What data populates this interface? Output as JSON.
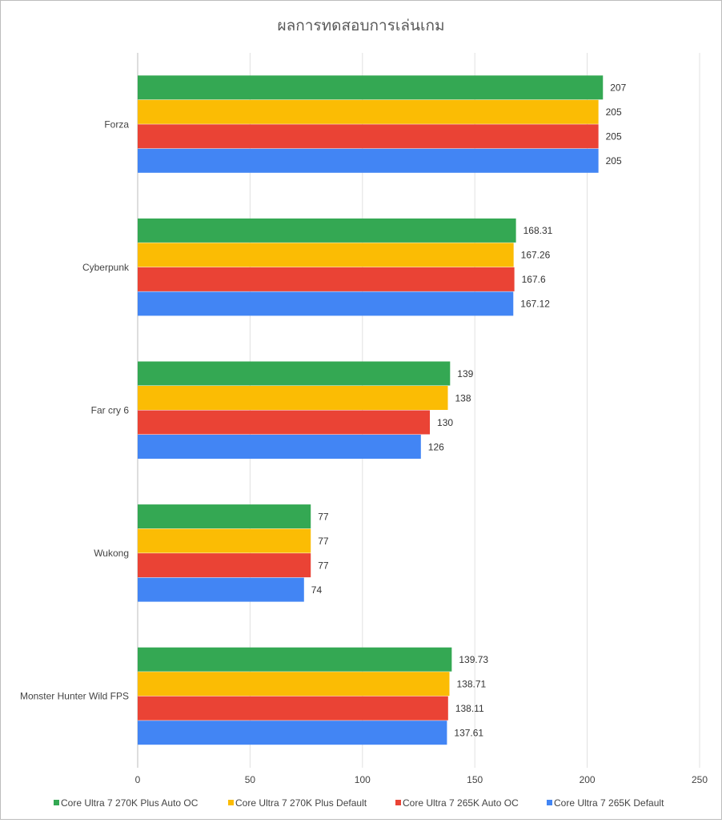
{
  "chart_data": {
    "type": "bar",
    "orientation": "horizontal",
    "title": "ผลการทดสอบการเล่นเกม",
    "xlabel": "",
    "ylabel": "",
    "xlim": [
      0,
      250
    ],
    "xticks": [
      0,
      50,
      100,
      150,
      200,
      250
    ],
    "grid": true,
    "legend_position": "bottom",
    "categories": [
      "Forza",
      "Cyberpunk",
      "Far cry 6",
      "Wukong",
      "Monster Hunter Wild FPS"
    ],
    "series": [
      {
        "name": "Core Ultra 7 270K Plus Auto OC",
        "color": "#34a853",
        "values": [
          207,
          168.31,
          139,
          77,
          139.73
        ]
      },
      {
        "name": "Core Ultra 7 270K Plus Default",
        "color": "#fbbc04",
        "values": [
          205,
          167.26,
          138,
          77,
          138.71
        ]
      },
      {
        "name": "Core Ultra 7 265K Auto OC",
        "color": "#ea4335",
        "values": [
          205,
          167.6,
          130,
          77,
          138.11
        ]
      },
      {
        "name": "Core Ultra 7 265K Default",
        "color": "#4285f4",
        "values": [
          205,
          167.12,
          126,
          74,
          137.61
        ]
      }
    ]
  }
}
